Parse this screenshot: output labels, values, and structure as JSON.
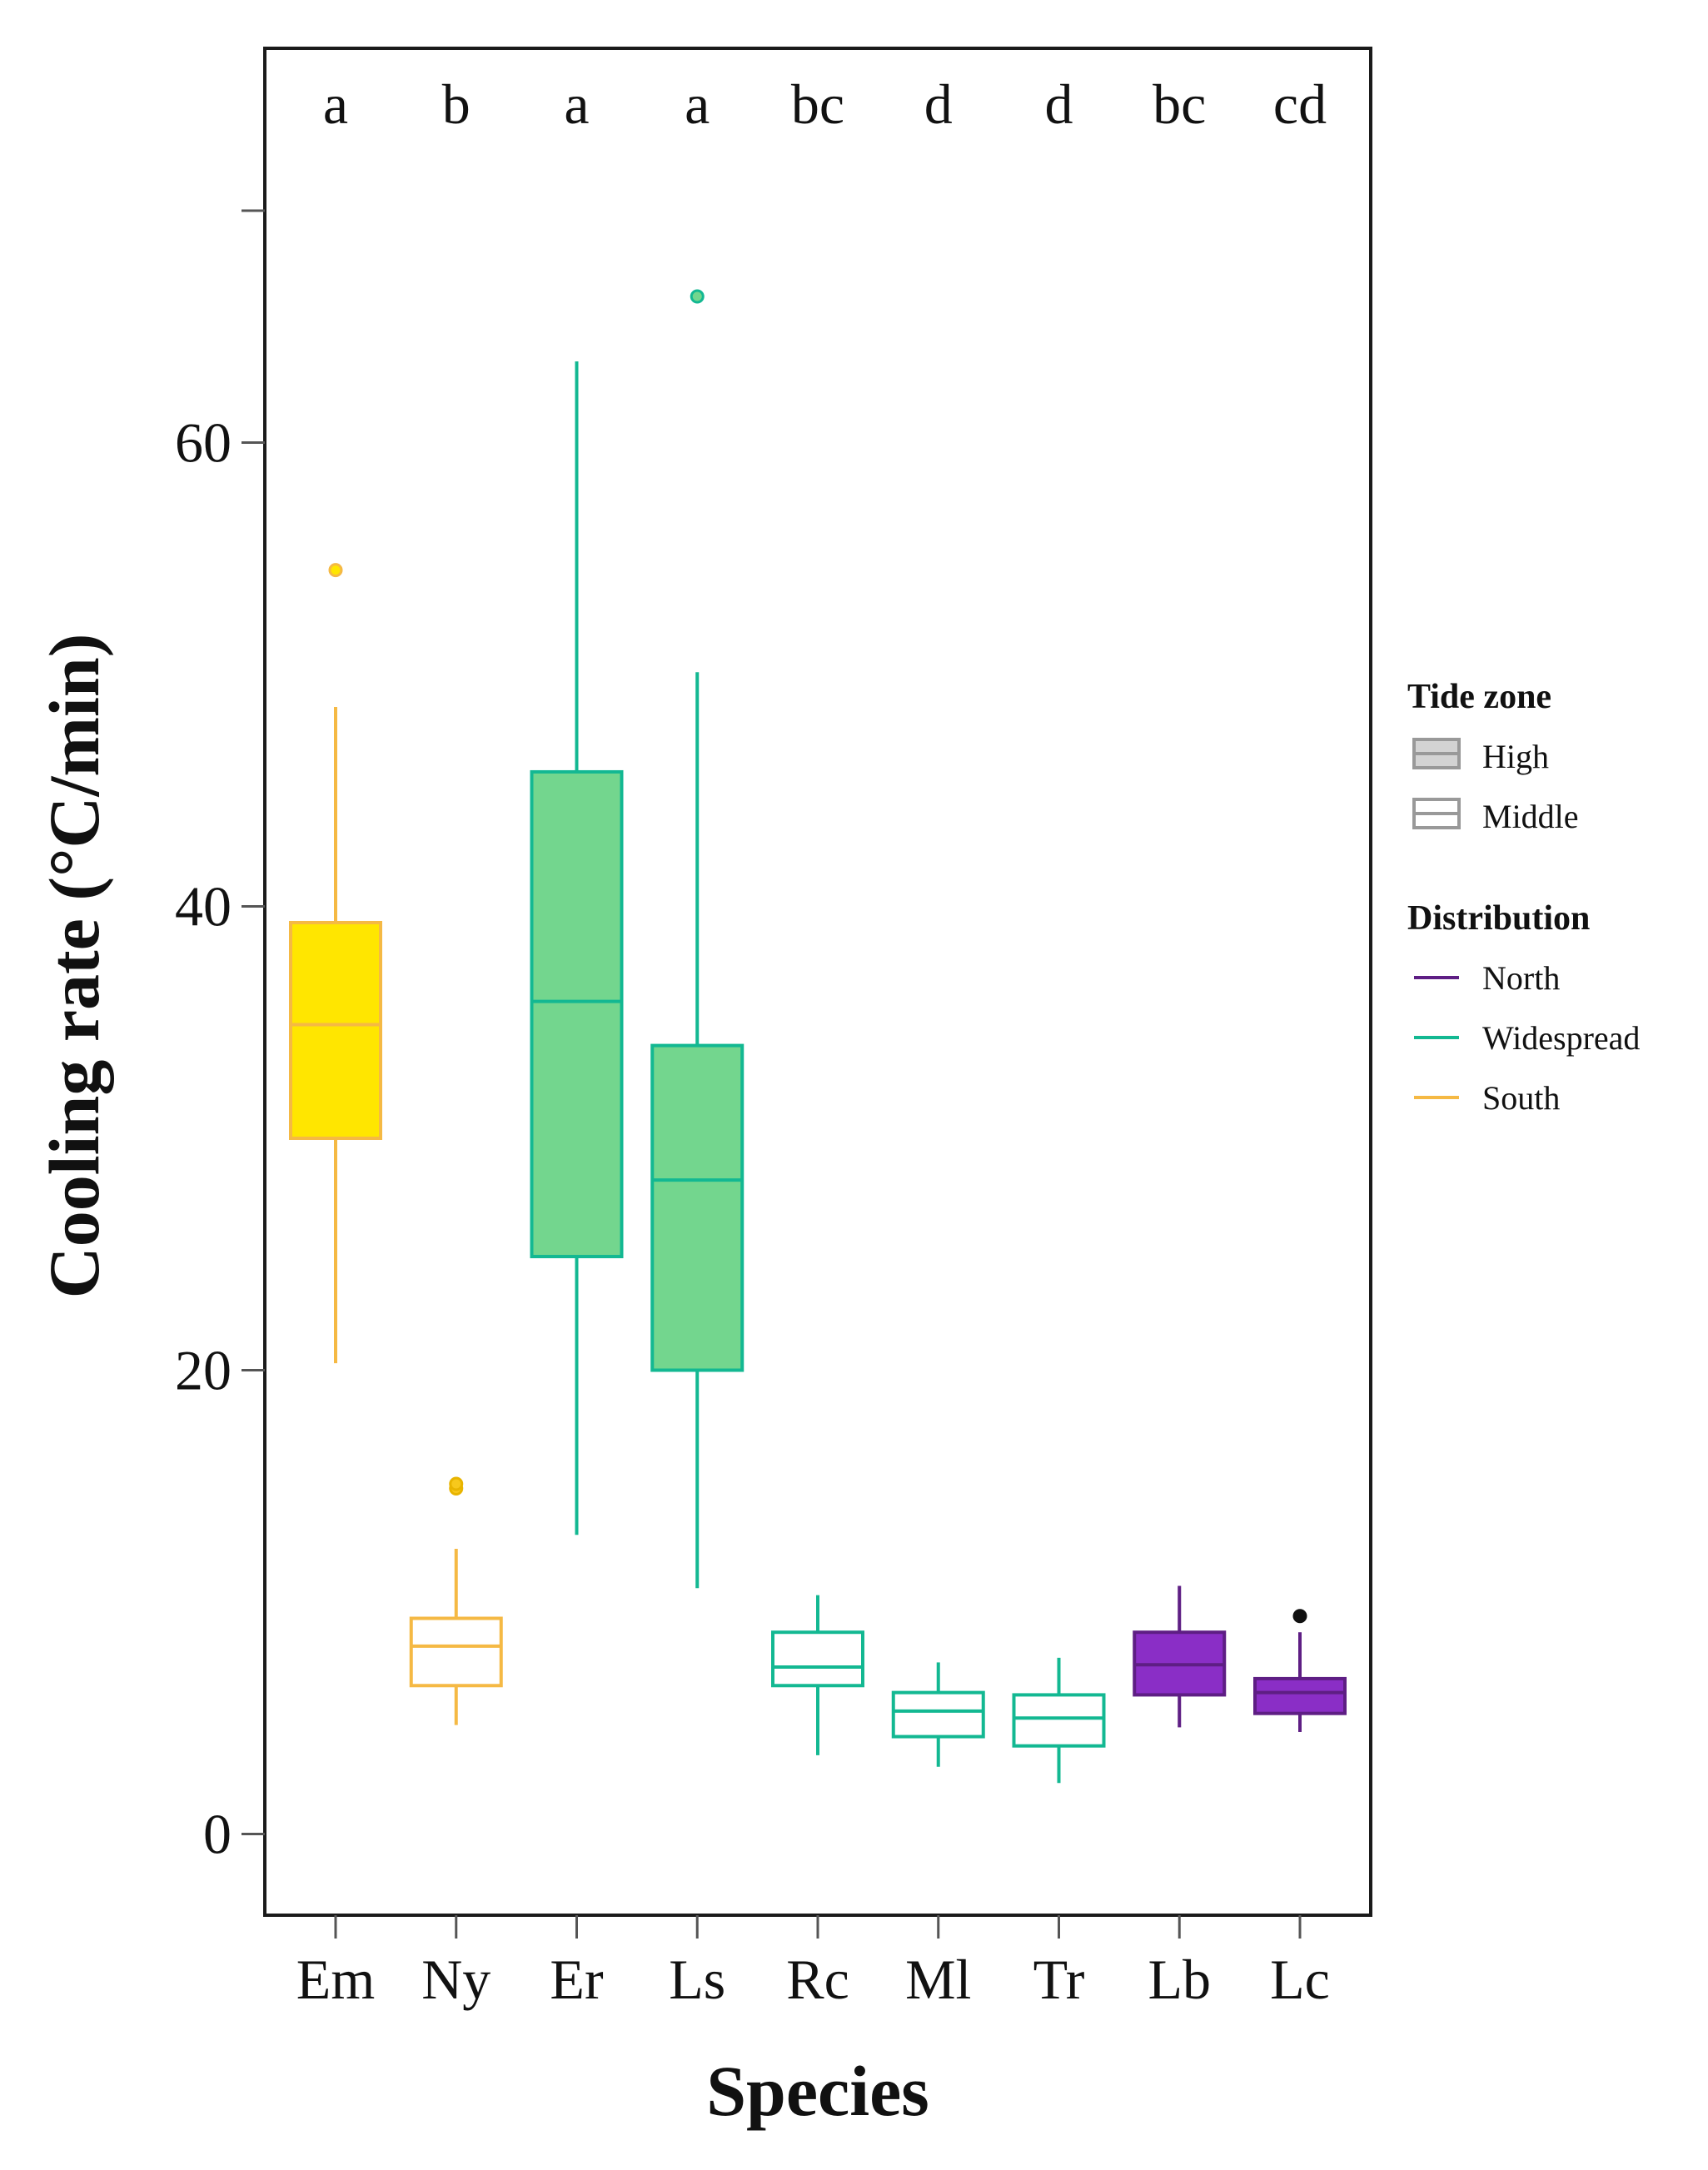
{
  "chart_data": {
    "type": "box",
    "xlabel": "Species",
    "ylabel": "Cooling rate (°C/min)",
    "ylim": [
      -3.5,
      77
    ],
    "yticks": [
      0,
      20,
      40,
      60,
      70
    ],
    "ytick_labels": [
      "0",
      "20",
      "40",
      "60",
      ""
    ],
    "categories": [
      "Em",
      "Ny",
      "Er",
      "Ls",
      "Rc",
      "Ml",
      "Tr",
      "Lb",
      "Lc"
    ],
    "significance_letters": [
      "a",
      "b",
      "a",
      "a",
      "bc",
      "d",
      "d",
      "bc",
      "cd"
    ],
    "grid": false,
    "colors": {
      "South": "#F5B944",
      "Widespread": "#13B892",
      "North": "#5E1E84",
      "south_fill": "#FFE600",
      "widespread_fill": "#73D68E",
      "north_fill": "#8A2EC6"
    },
    "boxes": [
      {
        "category": "Em",
        "distribution": "South",
        "tide_zone": "High",
        "whisker_low": 20.3,
        "q1": 30.0,
        "median": 34.9,
        "q3": 39.3,
        "whisker_high": 48.6,
        "outliers": [
          54.5
        ]
      },
      {
        "category": "Ny",
        "distribution": "South",
        "tide_zone": "Middle",
        "whisker_low": 4.7,
        "q1": 6.4,
        "median": 8.1,
        "q3": 9.3,
        "whisker_high": 12.3,
        "outliers": [
          14.9,
          15.1
        ]
      },
      {
        "category": "Er",
        "distribution": "Widespread",
        "tide_zone": "High",
        "whisker_low": 12.9,
        "q1": 24.9,
        "median": 35.9,
        "q3": 45.8,
        "whisker_high": 63.5,
        "outliers": []
      },
      {
        "category": "Ls",
        "distribution": "Widespread",
        "tide_zone": "High",
        "whisker_low": 10.6,
        "q1": 20.0,
        "median": 28.2,
        "q3": 34.0,
        "whisker_high": 50.1,
        "outliers": [
          66.3
        ]
      },
      {
        "category": "Rc",
        "distribution": "Widespread",
        "tide_zone": "Middle",
        "whisker_low": 3.4,
        "q1": 6.4,
        "median": 7.2,
        "q3": 8.7,
        "whisker_high": 10.3,
        "outliers": []
      },
      {
        "category": "Ml",
        "distribution": "Widespread",
        "tide_zone": "Middle",
        "whisker_low": 2.9,
        "q1": 4.2,
        "median": 5.3,
        "q3": 6.1,
        "whisker_high": 7.4,
        "outliers": []
      },
      {
        "category": "Tr",
        "distribution": "Widespread",
        "tide_zone": "Middle",
        "whisker_low": 2.2,
        "q1": 3.8,
        "median": 5.0,
        "q3": 6.0,
        "whisker_high": 7.6,
        "outliers": []
      },
      {
        "category": "Lb",
        "distribution": "North",
        "tide_zone": "High",
        "whisker_low": 4.6,
        "q1": 6.0,
        "median": 7.3,
        "q3": 8.7,
        "whisker_high": 10.7,
        "outliers": []
      },
      {
        "category": "Lc",
        "distribution": "North",
        "tide_zone": "High",
        "whisker_low": 4.4,
        "q1": 5.2,
        "median": 6.1,
        "q3": 6.7,
        "whisker_high": 8.7,
        "outliers": [
          9.4
        ]
      }
    ],
    "legend": {
      "placement": "right",
      "groups": [
        {
          "title": "Tide zone",
          "kind": "box",
          "entries": [
            {
              "label": "High",
              "style": "filled",
              "color": "#999999",
              "fill": "#D3D3D3"
            },
            {
              "label": "Middle",
              "style": "hollow",
              "color": "#999999",
              "fill": "#ffffff"
            }
          ]
        },
        {
          "title": "Distribution",
          "kind": "line",
          "entries": [
            {
              "label": "North",
              "color": "#5E1E84"
            },
            {
              "label": "Widespread",
              "color": "#13B892"
            },
            {
              "label": "South",
              "color": "#F5B944"
            }
          ]
        }
      ]
    }
  }
}
